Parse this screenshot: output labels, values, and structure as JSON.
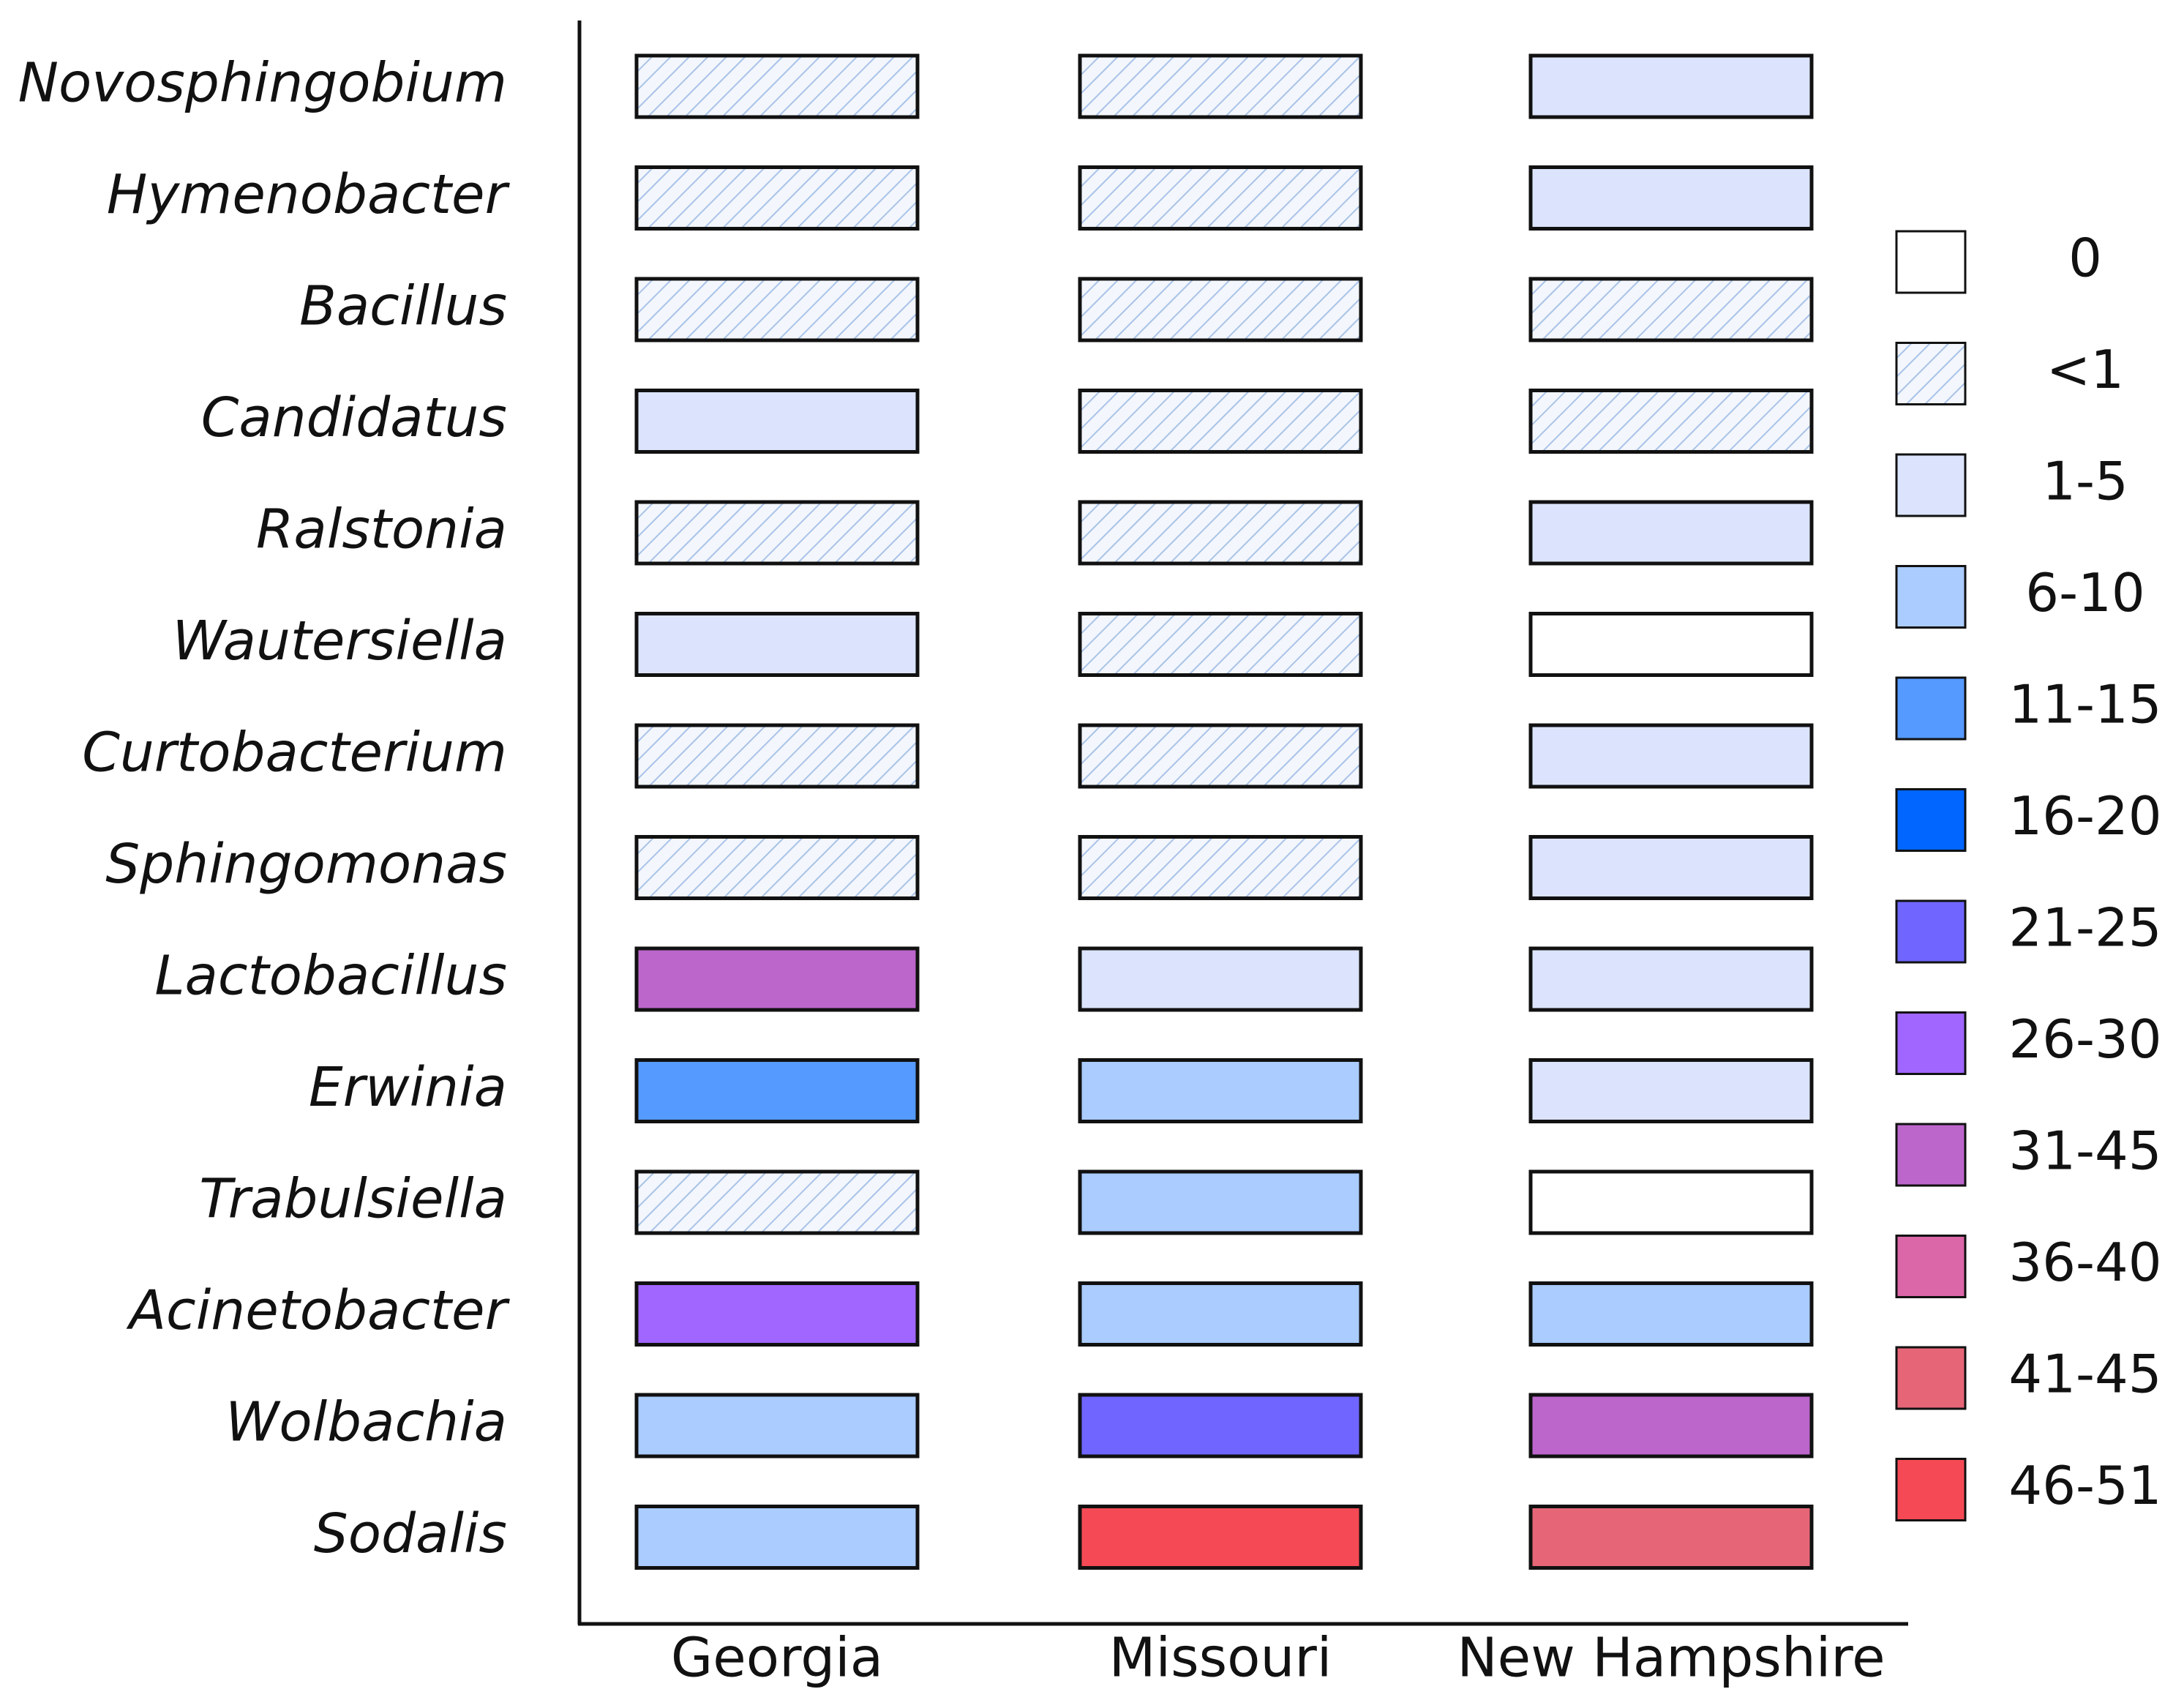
{
  "chart_data": {
    "type": "heatmap",
    "title": "",
    "xlabel": "",
    "ylabel": "",
    "columns": [
      "Georgia",
      "Missouri",
      "New Hampshire"
    ],
    "rows": [
      "Novosphingobium",
      "Hymenobacter",
      "Bacillus",
      "Candidatus",
      "Ralstonia",
      "Wautersiella",
      "Curtobacterium",
      "Sphingomonas",
      "Lactobacillus",
      "Erwinia",
      "Trabulsiella",
      "Acinetobacter",
      "Wolbachia",
      "Sodalis"
    ],
    "categories": [
      {
        "label": "0",
        "color": "#ffffff",
        "pattern": "none"
      },
      {
        "label": "<1",
        "color": "#f3f6fc",
        "pattern": "hatch"
      },
      {
        "label": "1-5",
        "color": "#dce4fd",
        "pattern": "none"
      },
      {
        "label": "6-10",
        "color": "#aaccff",
        "pattern": "none"
      },
      {
        "label": "11-15",
        "color": "#559aff",
        "pattern": "none"
      },
      {
        "label": "16-20",
        "color": "#0066ff",
        "pattern": "none"
      },
      {
        "label": "21-25",
        "color": "#7066ff",
        "pattern": "none"
      },
      {
        "label": "26-30",
        "color": "#a066ff",
        "pattern": "none"
      },
      {
        "label": "31-45",
        "color": "#bc66cc",
        "pattern": "none"
      },
      {
        "label": "36-40",
        "color": "#db66a8",
        "pattern": "none"
      },
      {
        "label": "41-45",
        "color": "#e66678",
        "pattern": "none"
      },
      {
        "label": "46-51",
        "color": "#f54a55",
        "pattern": "none"
      }
    ],
    "cells": [
      [
        "<1",
        "<1",
        "1-5"
      ],
      [
        "<1",
        "<1",
        "1-5"
      ],
      [
        "<1",
        "<1",
        "<1"
      ],
      [
        "1-5",
        "<1",
        "<1"
      ],
      [
        "<1",
        "<1",
        "1-5"
      ],
      [
        "1-5",
        "<1",
        "0"
      ],
      [
        "<1",
        "<1",
        "1-5"
      ],
      [
        "<1",
        "<1",
        "1-5"
      ],
      [
        "31-45",
        "1-5",
        "1-5"
      ],
      [
        "11-15",
        "6-10",
        "1-5"
      ],
      [
        "<1",
        "6-10",
        "0"
      ],
      [
        "26-30",
        "6-10",
        "6-10"
      ],
      [
        "6-10",
        "21-25",
        "31-45"
      ],
      [
        "6-10",
        "46-51",
        "41-45"
      ]
    ],
    "legend_position": "right",
    "hatch_color": "#a9c3e8"
  }
}
